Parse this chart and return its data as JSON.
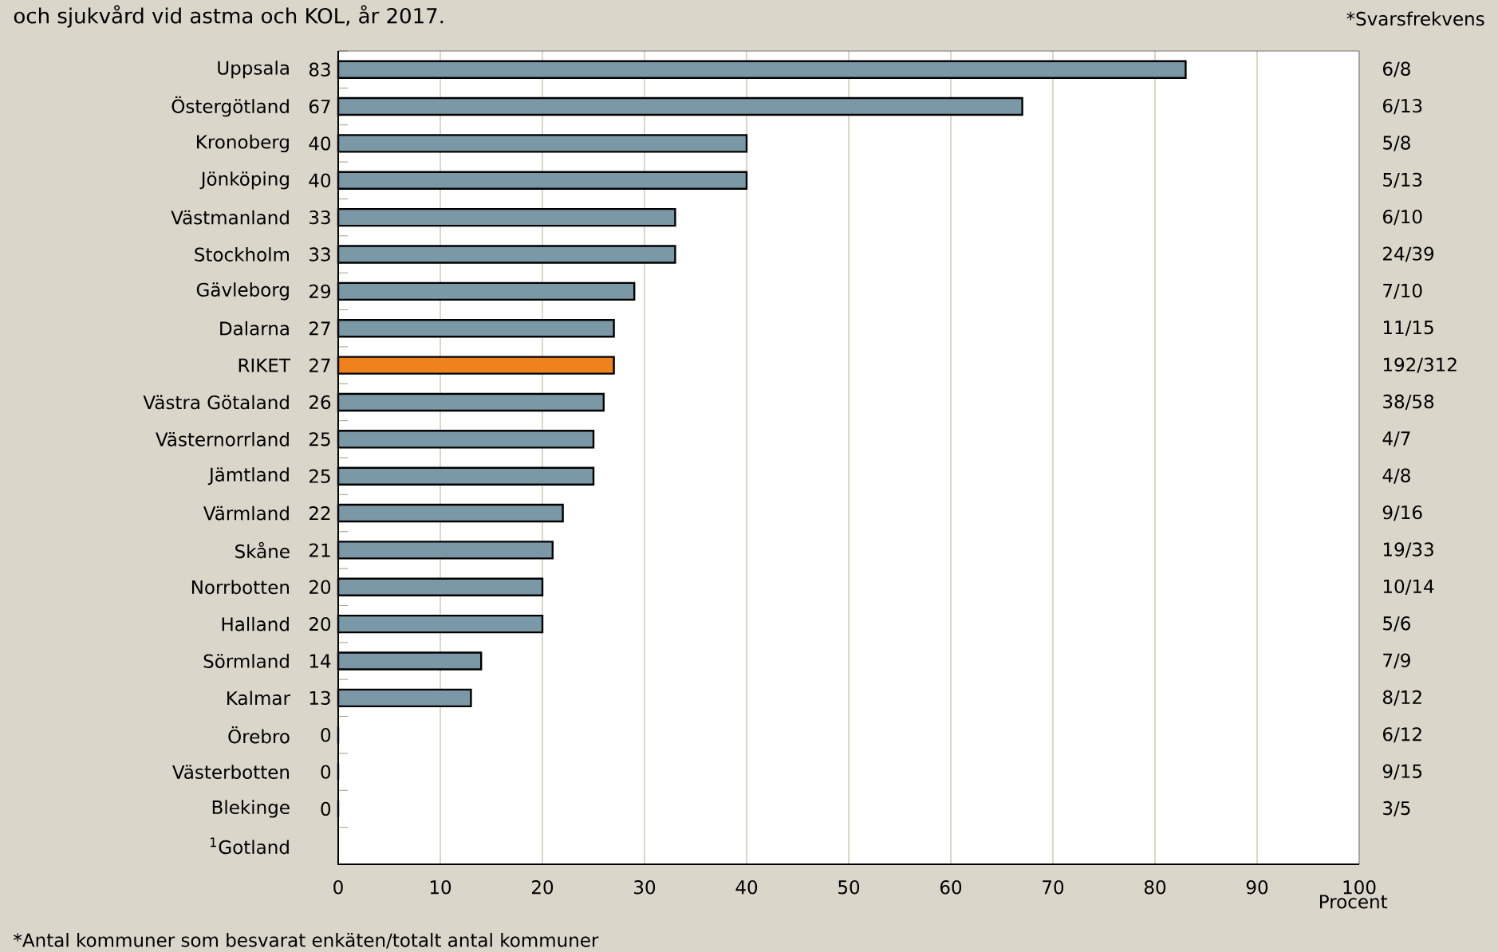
{
  "chart_data": {
    "type": "bar",
    "orientation": "horizontal",
    "title": "och sjukvård vid astma och KOL, år 2017.",
    "xlabel": "Procent",
    "categories": [
      "Uppsala",
      "Östergötland",
      "Kronoberg",
      "Jönköping",
      "Västmanland",
      "Stockholm",
      "Gävleborg",
      "Dalarna",
      "RIKET",
      "Västra Götaland",
      "Västernorrland",
      "Jämtland",
      "Värmland",
      "Skåne",
      "Norrbotten",
      "Halland",
      "Sörmland",
      "Kalmar",
      "Örebro",
      "Västerbotten",
      "Blekinge",
      "$^{1}$Gotland"
    ],
    "values": [
      83,
      67,
      40,
      40,
      33,
      33,
      29,
      27,
      27,
      26,
      25,
      25,
      22,
      21,
      20,
      20,
      14,
      13,
      0,
      0,
      0,
      null
    ],
    "colors": [
      "#7b98a7",
      "#7b98a7",
      "#7b98a7",
      "#7b98a7",
      "#7b98a7",
      "#7b98a7",
      "#7b98a7",
      "#7b98a7",
      "#f0821e",
      "#7b98a7",
      "#7b98a7",
      "#7b98a7",
      "#7b98a7",
      "#7b98a7",
      "#7b98a7",
      "#7b98a7",
      "#7b98a7",
      "#7b98a7",
      "#7b98a7",
      "#7b98a7",
      "#7b98a7",
      "#7b98a7"
    ],
    "data_labels": true,
    "grid": "x",
    "xlim": [
      0,
      100
    ],
    "xticks": [
      0,
      10,
      20,
      30,
      40,
      50,
      60,
      70,
      80,
      90,
      100
    ],
    "annotations": [
      "*Svarsfrekvens",
      "*Antal kommuner som besvarat enkäten/totalt antal kommuner",
      "6/8",
      "6/13",
      "5/8",
      "5/13",
      "6/10",
      "24/39",
      "7/10",
      "11/15",
      "192/312",
      "38/58",
      "4/7",
      "4/8",
      "9/16",
      "19/33",
      "10/14",
      "5/6",
      "7/9",
      "8/12",
      "6/12",
      "9/15",
      "3/5"
    ]
  }
}
